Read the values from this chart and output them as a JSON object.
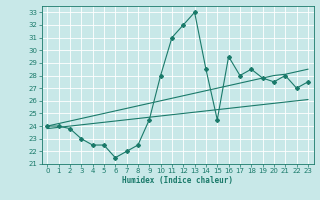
{
  "xlabel": "Humidex (Indice chaleur)",
  "bg_color": "#c8e8e8",
  "grid_color": "#ffffff",
  "line_color": "#1a7a6a",
  "xlim": [
    -0.5,
    23.5
  ],
  "ylim": [
    21,
    33.5
  ],
  "xticks": [
    0,
    1,
    2,
    3,
    4,
    5,
    6,
    7,
    8,
    9,
    10,
    11,
    12,
    13,
    14,
    15,
    16,
    17,
    18,
    19,
    20,
    21,
    22,
    23
  ],
  "yticks": [
    21,
    22,
    23,
    24,
    25,
    26,
    27,
    28,
    29,
    30,
    31,
    32,
    33
  ],
  "y_main": [
    24,
    24,
    23.8,
    23,
    22.5,
    22.5,
    21.5,
    22,
    22.5,
    24.5,
    28,
    31,
    32,
    33,
    28.5,
    24.5,
    29.5,
    28,
    28.5,
    27.8,
    27.5,
    28,
    27,
    27.5
  ],
  "y_upper": [
    24.0,
    24.2,
    24.4,
    24.6,
    24.8,
    25.0,
    25.2,
    25.4,
    25.6,
    25.8,
    26.0,
    26.2,
    26.4,
    26.6,
    26.8,
    27.0,
    27.2,
    27.4,
    27.6,
    27.8,
    28.0,
    28.1,
    28.3,
    28.5
  ],
  "y_lower": [
    23.8,
    23.9,
    24.0,
    24.1,
    24.2,
    24.3,
    24.4,
    24.5,
    24.6,
    24.7,
    24.8,
    24.9,
    25.0,
    25.1,
    25.2,
    25.3,
    25.4,
    25.5,
    25.6,
    25.7,
    25.8,
    25.9,
    26.0,
    26.1
  ]
}
